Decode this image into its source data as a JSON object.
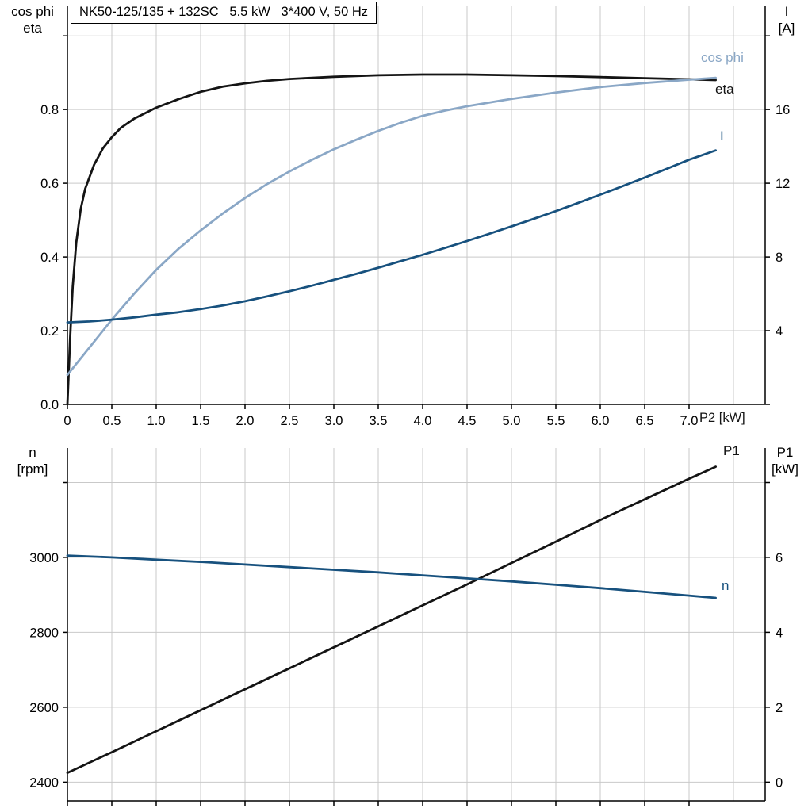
{
  "colors": {
    "black": "#141414",
    "light_blue": "#8AA7C6",
    "dark_blue": "#17517E",
    "grid": "#c9c9c9",
    "axis": "#000000"
  },
  "chart_data": [
    {
      "type": "line",
      "title": "NK50-125/135 + 132SC   5.5 kW   3*400 V, 50 Hz",
      "x": {
        "label": "P2 [kW]",
        "min": 0,
        "max": 7.857,
        "tick_values": [
          0,
          0.5,
          1.0,
          1.5,
          2.0,
          2.5,
          3.0,
          3.5,
          4.0,
          4.5,
          5.0,
          5.5,
          6.0,
          6.5,
          7.0
        ],
        "tick_labels": [
          "0",
          "0.5",
          "1.0",
          "1.5",
          "2.0",
          "2.5",
          "3.0",
          "3.5",
          "4.0",
          "4.5",
          "5.0",
          "5.5",
          "6.0",
          "6.5",
          "7.0"
        ],
        "grid_values": [
          0.5,
          1.0,
          1.5,
          2.0,
          2.5,
          3.0,
          3.5,
          4.0,
          4.5,
          5.0,
          5.5,
          6.0,
          6.5,
          7.0,
          7.5
        ]
      },
      "y_left": {
        "title_lines": [
          "cos phi",
          "eta"
        ],
        "min": 0,
        "max": 1.08,
        "tick_values": [
          0,
          0.2,
          0.4,
          0.6,
          0.8
        ],
        "tick_labels": [
          "0.0",
          "0.2",
          "0.4",
          "0.6",
          "0.8"
        ],
        "grid_values": [
          0.2,
          0.4,
          0.6,
          0.8,
          1.0
        ]
      },
      "y_right": {
        "title_lines": [
          "I",
          "[A]"
        ],
        "min": 0,
        "max": 21.6,
        "tick_values": [
          4,
          8,
          12,
          16
        ],
        "tick_labels": [
          "4",
          "8",
          "12",
          "16"
        ]
      },
      "series": [
        {
          "name": "eta",
          "label": "eta",
          "axis": "left",
          "color_key": "black",
          "points": [
            [
              0,
              0
            ],
            [
              0.03,
              0.18
            ],
            [
              0.06,
              0.32
            ],
            [
              0.1,
              0.44
            ],
            [
              0.15,
              0.53
            ],
            [
              0.2,
              0.585
            ],
            [
              0.3,
              0.65
            ],
            [
              0.4,
              0.695
            ],
            [
              0.5,
              0.725
            ],
            [
              0.6,
              0.75
            ],
            [
              0.75,
              0.775
            ],
            [
              1.0,
              0.805
            ],
            [
              1.25,
              0.828
            ],
            [
              1.5,
              0.848
            ],
            [
              1.75,
              0.862
            ],
            [
              2.0,
              0.871
            ],
            [
              2.25,
              0.878
            ],
            [
              2.5,
              0.883
            ],
            [
              3.0,
              0.889
            ],
            [
              3.5,
              0.893
            ],
            [
              4.0,
              0.895
            ],
            [
              4.5,
              0.895
            ],
            [
              5.0,
              0.893
            ],
            [
              5.5,
              0.891
            ],
            [
              6.0,
              0.888
            ],
            [
              6.5,
              0.885
            ],
            [
              7.0,
              0.882
            ],
            [
              7.3,
              0.88
            ]
          ]
        },
        {
          "name": "cos_phi",
          "label": "cos phi",
          "axis": "left",
          "color_key": "light_blue",
          "points": [
            [
              0,
              0.08
            ],
            [
              0.25,
              0.155
            ],
            [
              0.5,
              0.23
            ],
            [
              0.75,
              0.3
            ],
            [
              1.0,
              0.365
            ],
            [
              1.25,
              0.422
            ],
            [
              1.5,
              0.472
            ],
            [
              1.75,
              0.518
            ],
            [
              2.0,
              0.56
            ],
            [
              2.25,
              0.598
            ],
            [
              2.5,
              0.632
            ],
            [
              2.75,
              0.663
            ],
            [
              3.0,
              0.692
            ],
            [
              3.25,
              0.718
            ],
            [
              3.5,
              0.742
            ],
            [
              3.75,
              0.764
            ],
            [
              4.0,
              0.783
            ],
            [
              4.25,
              0.797
            ],
            [
              4.5,
              0.809
            ],
            [
              5.0,
              0.829
            ],
            [
              5.5,
              0.846
            ],
            [
              6.0,
              0.861
            ],
            [
              6.5,
              0.872
            ],
            [
              7.0,
              0.881
            ],
            [
              7.3,
              0.886
            ]
          ]
        },
        {
          "name": "current",
          "label": "I",
          "axis": "right",
          "color_key": "dark_blue",
          "points": [
            [
              0,
              4.45
            ],
            [
              0.25,
              4.5
            ],
            [
              0.5,
              4.6
            ],
            [
              0.75,
              4.72
            ],
            [
              1.0,
              4.87
            ],
            [
              1.25,
              5.0
            ],
            [
              1.5,
              5.17
            ],
            [
              1.75,
              5.37
            ],
            [
              2.0,
              5.6
            ],
            [
              2.25,
              5.86
            ],
            [
              2.5,
              6.14
            ],
            [
              2.75,
              6.44
            ],
            [
              3.0,
              6.76
            ],
            [
              3.25,
              7.08
            ],
            [
              3.5,
              7.42
            ],
            [
              3.75,
              7.77
            ],
            [
              4.0,
              8.12
            ],
            [
              4.25,
              8.49
            ],
            [
              4.5,
              8.87
            ],
            [
              4.75,
              9.26
            ],
            [
              5.0,
              9.66
            ],
            [
              5.25,
              10.07
            ],
            [
              5.5,
              10.49
            ],
            [
              5.75,
              10.93
            ],
            [
              6.0,
              11.38
            ],
            [
              6.25,
              11.84
            ],
            [
              6.5,
              12.31
            ],
            [
              6.75,
              12.79
            ],
            [
              7.0,
              13.28
            ],
            [
              7.3,
              13.78
            ]
          ]
        }
      ]
    },
    {
      "type": "line",
      "x": {
        "label": "",
        "min": 0,
        "max": 7.857,
        "tick_values": [
          0,
          0.5,
          1.0,
          1.5,
          2.0,
          2.5,
          3.0,
          3.5,
          4.0,
          4.5,
          5.0,
          5.5,
          6.0,
          6.5,
          7.0
        ],
        "tick_labels": [],
        "grid_values": [
          0.5,
          1.0,
          1.5,
          2.0,
          2.5,
          3.0,
          3.5,
          4.0,
          4.5,
          5.0,
          5.5,
          6.0,
          6.5,
          7.0,
          7.5
        ]
      },
      "y_left": {
        "title_lines": [
          "n",
          "[rpm]"
        ],
        "min": 2350,
        "max": 3292,
        "tick_values": [
          2400,
          2600,
          2800,
          3000
        ],
        "tick_labels": [
          "2400",
          "2600",
          "2800",
          "3000"
        ],
        "grid_values": [
          2400,
          2600,
          2800,
          3000,
          3200
        ]
      },
      "y_right": {
        "title_lines": [
          "P1",
          "[kW]"
        ],
        "min": -0.5,
        "max": 8.92,
        "tick_values": [
          0,
          2,
          4,
          6
        ],
        "tick_labels": [
          "0",
          "2",
          "4",
          "6"
        ]
      },
      "series": [
        {
          "name": "p1",
          "label": "P1",
          "axis": "right",
          "color_key": "black",
          "points": [
            [
              0,
              0.25
            ],
            [
              0.5,
              0.8
            ],
            [
              1,
              1.36
            ],
            [
              1.5,
              1.92
            ],
            [
              2,
              2.48
            ],
            [
              2.5,
              3.04
            ],
            [
              3,
              3.6
            ],
            [
              3.5,
              4.16
            ],
            [
              4,
              4.72
            ],
            [
              4.5,
              5.28
            ],
            [
              5,
              5.85
            ],
            [
              5.5,
              6.42
            ],
            [
              6,
              7.0
            ],
            [
              6.5,
              7.55
            ],
            [
              7,
              8.1
            ],
            [
              7.3,
              8.42
            ]
          ]
        },
        {
          "name": "n",
          "label": "n",
          "axis": "left",
          "color_key": "dark_blue",
          "points": [
            [
              0,
              3005
            ],
            [
              0.5,
              3000
            ],
            [
              1,
              2994
            ],
            [
              1.5,
              2988
            ],
            [
              2,
              2981
            ],
            [
              2.5,
              2974
            ],
            [
              3,
              2967
            ],
            [
              3.5,
              2960
            ],
            [
              4,
              2952
            ],
            [
              4.5,
              2944
            ],
            [
              5,
              2936
            ],
            [
              5.5,
              2927
            ],
            [
              6,
              2918
            ],
            [
              6.5,
              2908
            ],
            [
              7,
              2898
            ],
            [
              7.3,
              2892
            ]
          ]
        }
      ]
    }
  ]
}
